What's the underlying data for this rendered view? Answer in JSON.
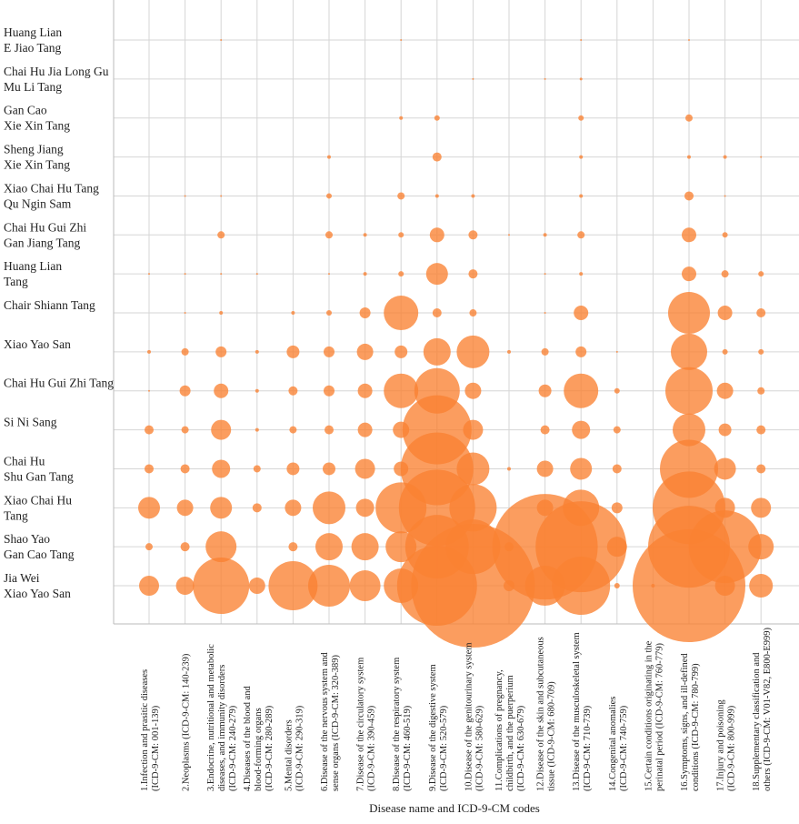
{
  "chart_data": {
    "type": "bubble",
    "x_label": "Disease name and ICD-9-CM codes",
    "color": "#fa8232",
    "columns": [
      [
        "1.Infection and prasitic diseases",
        "(ICD-9-CM: 001-139)"
      ],
      [
        "2.Neoplasms (ICD-9-CM: 140-239)"
      ],
      [
        "3.Endocrine, nutritional and metabolic",
        "diseases, and immunity disorders",
        "(ICD-9-CM: 240-279)"
      ],
      [
        "4.Diseases of the blood and",
        "blood-forming organs",
        "(ICD-9-CM: 280-289)"
      ],
      [
        "5.Mental disorders",
        "(ICD-9-CM: 290-319)"
      ],
      [
        "6.Disease of the nervous system and",
        "sense organs (ICD-9-CM: 320-389)"
      ],
      [
        "7.Disease of the circulatory system",
        "(ICD-9-CM: 390-459)"
      ],
      [
        "8.Disease of the respiratory system",
        "(ICD-9-CM: 460-519)"
      ],
      [
        "9.Disease of the digestive system",
        "(ICD-9-CM: 520-579)"
      ],
      [
        "10.Disease of the genitourinary system",
        "(ICD-9-CM: 580-629)"
      ],
      [
        "11.Complications of pregnancy,",
        "childbirth, and the puerperium",
        "(ICD-9-CM: 630-679)"
      ],
      [
        "12.Disease of the skin and subcutaneous",
        "tissue (ICD-9-CM: 680-709)"
      ],
      [
        "13.Disease of the musculoskeletal system",
        "(ICD-9-CM: 710-739)"
      ],
      [
        "14.Congenital anomalies",
        "(ICD-9-CM: 740-759)"
      ],
      [
        "15.Certain conditions originating in the",
        "perinatal period (ICD-9-CM: 760-779)"
      ],
      [
        "16.Symptoms, signs, and ill-defined",
        "conditions (ICD-9-CM: 780-799)"
      ],
      [
        "17.Injury and poisoning",
        "(ICD-9-CM: 800-999)"
      ],
      [
        "18.Supplementary classification and",
        "others (ICD-9-CM: V01-V82, E800-E999)"
      ]
    ],
    "rows": [
      {
        "label": [
          "Huang Lian",
          "E Jiao Tang"
        ],
        "values": [
          0,
          0,
          1,
          0,
          0,
          0,
          0,
          1,
          0,
          0,
          0,
          0,
          1,
          0,
          0,
          1,
          0,
          0
        ]
      },
      {
        "label": [
          "Chai Hu Jia Long Gu",
          "Mu Li Tang"
        ],
        "values": [
          0,
          0,
          0,
          0,
          0,
          0,
          0,
          0,
          0,
          1,
          0,
          1,
          1.5,
          0,
          0,
          0,
          0,
          0
        ]
      },
      {
        "label": [
          "Gan Cao",
          "Xie Xin Tang"
        ],
        "values": [
          0,
          0,
          0,
          0,
          0,
          0,
          0,
          2,
          3,
          0,
          0,
          0,
          3,
          0,
          0,
          4,
          0,
          0
        ]
      },
      {
        "label": [
          "Sheng Jiang",
          "Xie Xin Tang"
        ],
        "values": [
          0,
          0,
          0,
          0,
          0,
          2,
          0,
          0,
          5,
          0,
          0,
          0,
          2,
          0,
          0,
          2,
          2,
          1
        ]
      },
      {
        "label": [
          "Xiao Chai Hu Tang",
          "Qu Ngin Sam"
        ],
        "values": [
          0,
          1,
          1,
          0,
          0,
          3,
          0,
          4,
          2,
          2,
          0,
          0,
          2,
          0,
          0,
          5,
          1,
          0
        ]
      },
      {
        "label": [
          "Chai Hu Gui Zhi",
          "Gan Jiang Tang"
        ],
        "values": [
          0,
          0,
          4,
          0,
          0,
          4,
          2,
          3,
          8,
          5,
          1,
          2,
          4,
          0,
          0,
          8,
          3,
          0
        ]
      },
      {
        "label": [
          "Huang Lian",
          "Tang"
        ],
        "values": [
          1,
          1,
          1,
          1,
          0,
          1,
          2,
          3,
          12,
          5,
          0,
          1,
          2,
          0,
          0,
          8,
          4,
          3
        ]
      },
      {
        "label": [
          "Chair Shiann Tang"
        ],
        "values": [
          0,
          1,
          2,
          0,
          2,
          3,
          6,
          19,
          5,
          4,
          0,
          1,
          8,
          0,
          0,
          23,
          8,
          5
        ]
      },
      {
        "label": [
          "Xiao Yao San"
        ],
        "values": [
          2,
          4,
          6,
          2,
          7,
          6,
          9,
          7,
          15,
          18,
          2,
          4,
          6,
          1,
          0,
          20,
          3,
          3
        ]
      },
      {
        "label": [
          "Chai Hu Gui Zhi Tang"
        ],
        "values": [
          1,
          6,
          8,
          2,
          5,
          6,
          8,
          19,
          25,
          9,
          0,
          7,
          19,
          3,
          0,
          26,
          9,
          4
        ]
      },
      {
        "label": [
          "Si Ni Sang"
        ],
        "values": [
          5,
          4,
          11,
          2,
          4,
          5,
          8,
          9,
          38,
          11,
          0,
          5,
          10,
          4,
          0,
          18,
          7,
          5
        ]
      },
      {
        "label": [
          "Chai Hu",
          "Shu Gan Tang"
        ],
        "values": [
          5,
          5,
          10,
          4,
          7,
          7,
          11,
          8,
          40,
          18,
          2,
          9,
          12,
          5,
          0,
          32,
          12,
          5
        ]
      },
      {
        "label": [
          "Xiao Chai Hu",
          "Tang"
        ],
        "values": [
          12,
          9,
          12,
          5,
          9,
          18,
          10,
          28,
          42,
          26,
          0,
          9,
          20,
          6,
          0,
          40,
          11,
          11
        ]
      },
      {
        "label": [
          "Shao Yao",
          "Gan Cao Tang"
        ],
        "values": [
          4,
          5,
          17,
          0,
          5,
          15,
          15,
          17,
          35,
          30,
          5,
          58,
          50,
          11,
          0,
          45,
          40,
          14
        ]
      },
      {
        "label": [
          "Jia Wei",
          "Xiao Yao San"
        ],
        "values": [
          11,
          10,
          31,
          9,
          27,
          23,
          17,
          19,
          44,
          68,
          6,
          22,
          32,
          3,
          2,
          62,
          11,
          13
        ]
      }
    ]
  }
}
